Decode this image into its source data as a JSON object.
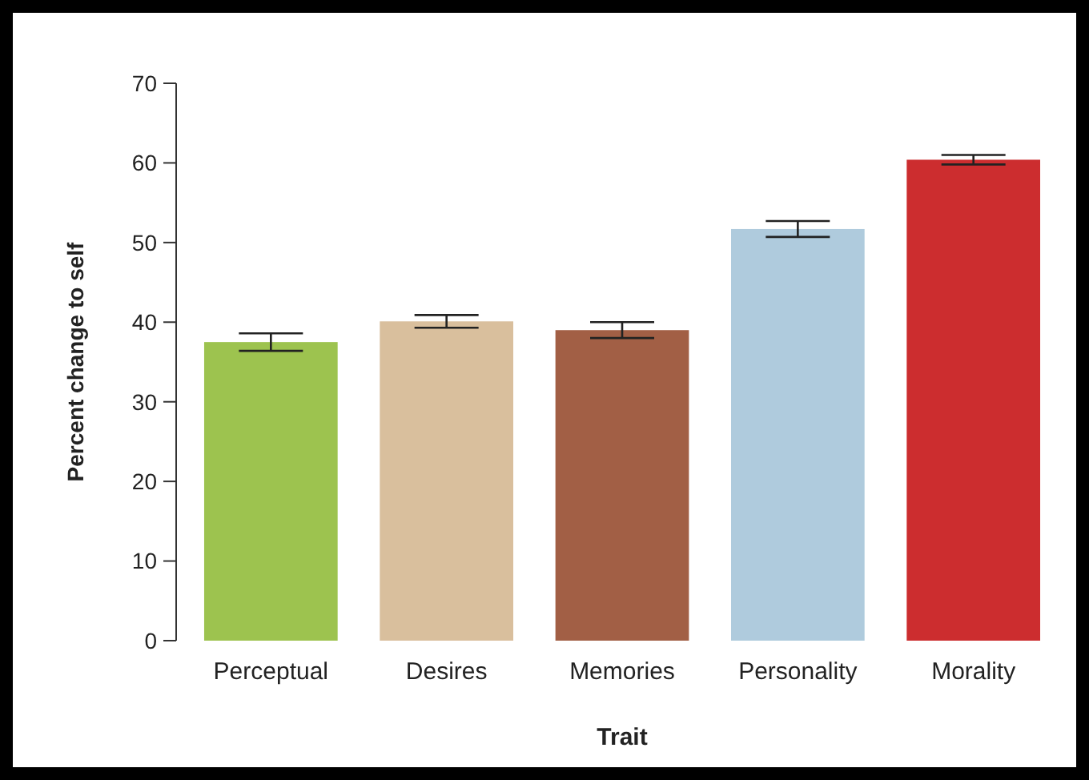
{
  "chart_data": {
    "type": "bar",
    "xlabel": "Trait",
    "ylabel": "Percent change to self",
    "categories": [
      "Perceptual",
      "Desires",
      "Memories",
      "Personality",
      "Morality"
    ],
    "values": [
      37.5,
      40.1,
      39.0,
      51.7,
      60.4
    ],
    "colors": [
      "#9dc34f",
      "#d9bf9d",
      "#a25f45",
      "#afcbdd",
      "#cc2d2f"
    ],
    "errors": [
      1.1,
      0.8,
      1.0,
      1.0,
      0.6
    ],
    "ylim": [
      0,
      70
    ],
    "yticks": [
      0,
      10,
      20,
      30,
      40,
      50,
      60,
      70
    ],
    "grid": false
  }
}
